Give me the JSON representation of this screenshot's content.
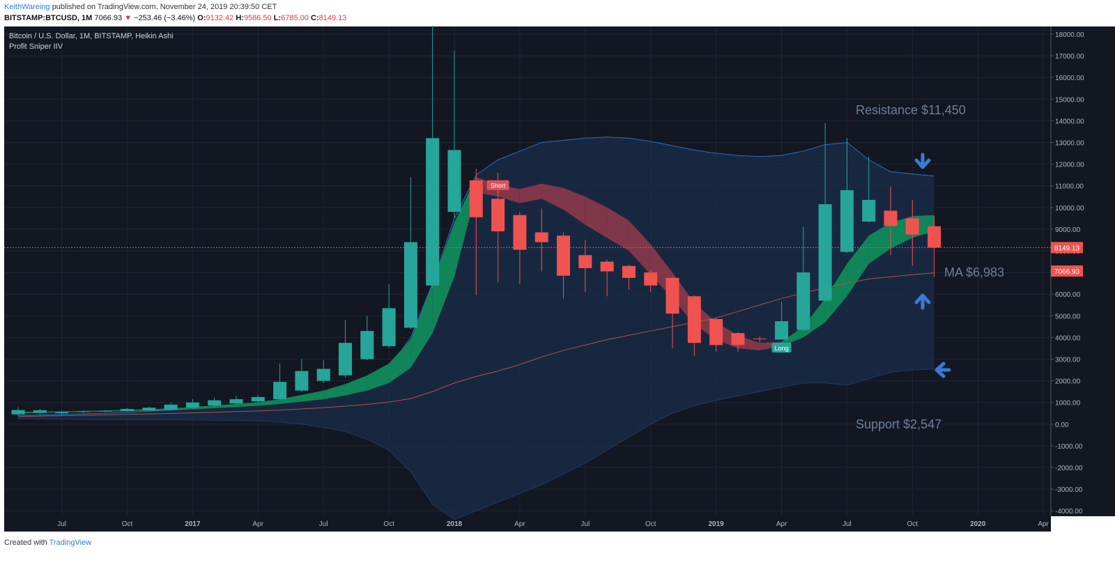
{
  "header": {
    "author": "KeithWareing",
    "published": "published on TradingView.com, November 24, 2019 20:39:50 CET",
    "symbol": "BITSTAMP:BTCUSD, 1M",
    "last": "7066.93",
    "change_arrow": "▼",
    "change": "−253.46 (−3.46%)",
    "o_label": "O:",
    "o_value": "9132.42",
    "h_label": "H:",
    "h_value": "9586.50",
    "l_label": "L:",
    "l_value": "6785.00",
    "c_label": "C:",
    "c_value": "8149.13"
  },
  "footer": {
    "created_with": "Created with",
    "brand": "TradingView"
  },
  "colors": {
    "bg": "#131722",
    "up": "#26a69a",
    "down": "#ef5350",
    "band_fill": "#1a2a45",
    "band_line": "#2a6fc1",
    "ribbon_up": "#0f8a5a",
    "ribbon_down": "#8b3a4a",
    "ma_line": "#b0524f",
    "arrow": "#3a7bd5",
    "grid": "#1f2535"
  },
  "chart_data": {
    "type": "candlestick",
    "title": "Bitcoin / U.S. Dollar, 1M, BITSTAMP, Heikin Ashi",
    "indicator": "Profit Sniper IIV",
    "ylim": [
      -4000,
      18000
    ],
    "y_ticks": [
      18000,
      17000,
      16000,
      15000,
      14000,
      13000,
      12000,
      11000,
      10000,
      9000,
      8000,
      7000,
      6000,
      5000,
      4000,
      3000,
      2000,
      1000,
      0,
      -1000,
      -2000,
      -3000,
      -4000
    ],
    "x_ticks": [
      "Jul",
      "Oct",
      "2017",
      "Apr",
      "Jul",
      "Oct",
      "2018",
      "Apr",
      "Jul",
      "Oct",
      "2019",
      "Apr",
      "Jul",
      "Oct",
      "2020",
      "Apr"
    ],
    "months": [
      "2016-05",
      "2016-06",
      "2016-07",
      "2016-08",
      "2016-09",
      "2016-10",
      "2016-11",
      "2016-12",
      "2017-01",
      "2017-02",
      "2017-03",
      "2017-04",
      "2017-05",
      "2017-06",
      "2017-07",
      "2017-08",
      "2017-09",
      "2017-10",
      "2017-11",
      "2017-12",
      "2018-01",
      "2018-02",
      "2018-03",
      "2018-04",
      "2018-05",
      "2018-06",
      "2018-07",
      "2018-08",
      "2018-09",
      "2018-10",
      "2018-11",
      "2018-12",
      "2019-01",
      "2019-02",
      "2019-03",
      "2019-04",
      "2019-05",
      "2019-06",
      "2019-07",
      "2019-08",
      "2019-09",
      "2019-10",
      "2019-11"
    ],
    "candles": [
      {
        "o": 450,
        "h": 780,
        "l": 380,
        "c": 650
      },
      {
        "o": 520,
        "h": 700,
        "l": 450,
        "c": 640
      },
      {
        "o": 500,
        "h": 620,
        "l": 420,
        "c": 560
      },
      {
        "o": 560,
        "h": 630,
        "l": 520,
        "c": 600
      },
      {
        "o": 580,
        "h": 640,
        "l": 550,
        "c": 620
      },
      {
        "o": 600,
        "h": 750,
        "l": 580,
        "c": 700
      },
      {
        "o": 630,
        "h": 800,
        "l": 600,
        "c": 760
      },
      {
        "o": 660,
        "h": 1000,
        "l": 640,
        "c": 900
      },
      {
        "o": 760,
        "h": 1150,
        "l": 700,
        "c": 1000
      },
      {
        "o": 860,
        "h": 1220,
        "l": 800,
        "c": 1100
      },
      {
        "o": 950,
        "h": 1300,
        "l": 900,
        "c": 1150
      },
      {
        "o": 1050,
        "h": 1360,
        "l": 1000,
        "c": 1250
      },
      {
        "o": 1150,
        "h": 2800,
        "l": 1100,
        "c": 1950
      },
      {
        "o": 1550,
        "h": 3000,
        "l": 1500,
        "c": 2450
      },
      {
        "o": 2000,
        "h": 2950,
        "l": 1900,
        "c": 2550
      },
      {
        "o": 2250,
        "h": 4800,
        "l": 2150,
        "c": 3750
      },
      {
        "o": 3000,
        "h": 5000,
        "l": 2950,
        "c": 4300
      },
      {
        "o": 3600,
        "h": 6450,
        "l": 3500,
        "c": 5350
      },
      {
        "o": 4450,
        "h": 11400,
        "l": 4400,
        "c": 8400
      },
      {
        "o": 6400,
        "h": 18400,
        "l": 6300,
        "c": 13200
      },
      {
        "o": 9800,
        "h": 17250,
        "l": 9500,
        "c": 12650
      },
      {
        "o": 11250,
        "h": 11800,
        "l": 5950,
        "c": 9550
      },
      {
        "o": 10400,
        "h": 11600,
        "l": 6550,
        "c": 8900
      },
      {
        "o": 9650,
        "h": 9800,
        "l": 6450,
        "c": 8050
      },
      {
        "o": 8850,
        "h": 9950,
        "l": 7050,
        "c": 8400
      },
      {
        "o": 8700,
        "h": 8850,
        "l": 5800,
        "c": 6850
      },
      {
        "o": 7800,
        "h": 8500,
        "l": 6100,
        "c": 7200
      },
      {
        "o": 7500,
        "h": 7600,
        "l": 5900,
        "c": 7050
      },
      {
        "o": 7300,
        "h": 7350,
        "l": 6200,
        "c": 6750
      },
      {
        "o": 7000,
        "h": 7100,
        "l": 6100,
        "c": 6400
      },
      {
        "o": 6750,
        "h": 6800,
        "l": 3500,
        "c": 5100
      },
      {
        "o": 5900,
        "h": 5950,
        "l": 3150,
        "c": 3750
      },
      {
        "o": 4850,
        "h": 4900,
        "l": 3350,
        "c": 3650
      },
      {
        "o": 4200,
        "h": 4250,
        "l": 3350,
        "c": 3650
      },
      {
        "o": 3950,
        "h": 4050,
        "l": 3750,
        "c": 3920
      },
      {
        "o": 3900,
        "h": 5650,
        "l": 3900,
        "c": 4750
      },
      {
        "o": 4350,
        "h": 9100,
        "l": 4300,
        "c": 7000
      },
      {
        "o": 5700,
        "h": 13900,
        "l": 5650,
        "c": 10150
      },
      {
        "o": 7950,
        "h": 13200,
        "l": 7900,
        "c": 10800
      },
      {
        "o": 9350,
        "h": 12350,
        "l": 9300,
        "c": 10350
      },
      {
        "o": 9850,
        "h": 10950,
        "l": 7800,
        "c": 9150
      },
      {
        "o": 9500,
        "h": 10350,
        "l": 7300,
        "c": 8750
      },
      {
        "o": 9132.42,
        "h": 9586.5,
        "l": 6785,
        "c": 8149.13
      }
    ],
    "ma_6983": [
      350,
      370,
      390,
      410,
      430,
      450,
      470,
      490,
      520,
      550,
      580,
      610,
      650,
      700,
      760,
      830,
      910,
      1020,
      1180,
      1500,
      1900,
      2200,
      2450,
      2750,
      3100,
      3400,
      3650,
      3900,
      4100,
      4300,
      4500,
      4700,
      4900,
      5200,
      5500,
      5800,
      6050,
      6300,
      6500,
      6700,
      6800,
      6900,
      6983
    ],
    "ma_6983_note": "",
    "band_upper": [
      400,
      420,
      450,
      480,
      510,
      550,
      600,
      650,
      700,
      760,
      830,
      910,
      1000,
      1150,
      1350,
      1650,
      2050,
      2600,
      4000,
      6500,
      9500,
      11500,
      12200,
      12600,
      13000,
      13100,
      13200,
      13250,
      13200,
      13050,
      12850,
      12650,
      12500,
      12400,
      12350,
      12400,
      12600,
      12900,
      13000,
      12200,
      11650,
      11550,
      11450
    ],
    "band_lower": [
      250,
      240,
      230,
      220,
      210,
      200,
      200,
      200,
      190,
      180,
      170,
      150,
      100,
      0,
      -150,
      -350,
      -700,
      -1200,
      -2200,
      -3700,
      -4400,
      -4000,
      -3600,
      -3200,
      -2800,
      -2300,
      -1800,
      -1200,
      -600,
      0,
      500,
      850,
      1100,
      1300,
      1500,
      1700,
      1900,
      1900,
      1800,
      2100,
      2400,
      2500,
      2547
    ],
    "ribbon": [
      {
        "a": 500,
        "b": 560
      },
      {
        "a": 520,
        "b": 580
      },
      {
        "a": 540,
        "b": 590
      },
      {
        "a": 560,
        "b": 610
      },
      {
        "a": 580,
        "b": 630
      },
      {
        "a": 600,
        "b": 660
      },
      {
        "a": 620,
        "b": 690
      },
      {
        "a": 650,
        "b": 730
      },
      {
        "a": 690,
        "b": 790
      },
      {
        "a": 740,
        "b": 860
      },
      {
        "a": 790,
        "b": 930
      },
      {
        "a": 850,
        "b": 1010
      },
      {
        "a": 930,
        "b": 1150
      },
      {
        "a": 1040,
        "b": 1350
      },
      {
        "a": 1150,
        "b": 1550
      },
      {
        "a": 1320,
        "b": 1850
      },
      {
        "a": 1550,
        "b": 2250
      },
      {
        "a": 1900,
        "b": 2800
      },
      {
        "a": 2600,
        "b": 3900
      },
      {
        "a": 4200,
        "b": 6500
      },
      {
        "a": 6800,
        "b": 9300
      },
      {
        "a": 10700,
        "b": 11400
      },
      {
        "a": 10500,
        "b": 11050
      },
      {
        "a": 10200,
        "b": 10850
      },
      {
        "a": 10400,
        "b": 11100
      },
      {
        "a": 9900,
        "b": 10900
      },
      {
        "a": 9200,
        "b": 10500
      },
      {
        "a": 8600,
        "b": 10000
      },
      {
        "a": 8000,
        "b": 9400
      },
      {
        "a": 6900,
        "b": 8300
      },
      {
        "a": 5800,
        "b": 7000
      },
      {
        "a": 4600,
        "b": 5600
      },
      {
        "a": 3900,
        "b": 4700
      },
      {
        "a": 3500,
        "b": 4100
      },
      {
        "a": 3400,
        "b": 3750
      },
      {
        "a": 3600,
        "b": 3800
      },
      {
        "a": 4000,
        "b": 4500
      },
      {
        "a": 4700,
        "b": 5800
      },
      {
        "a": 5900,
        "b": 7400
      },
      {
        "a": 7400,
        "b": 8700
      },
      {
        "a": 8100,
        "b": 9300
      },
      {
        "a": 8600,
        "b": 9600
      },
      {
        "a": 8900,
        "b": 9650
      }
    ],
    "ribbon_flip_index": 21,
    "ribbon_up_again_index": 35,
    "current_price": 8149.13,
    "current_price_label": "8149.13",
    "ma_price_label": "7066.93",
    "signals": [
      {
        "label": "Short",
        "index": 22,
        "value": 11000
      },
      {
        "label": "Long",
        "index": 35,
        "value": 3500
      }
    ],
    "annotations": {
      "resistance": "Resistance $11,450",
      "ma": "MA $6,983",
      "support": "Support $2,547"
    }
  }
}
